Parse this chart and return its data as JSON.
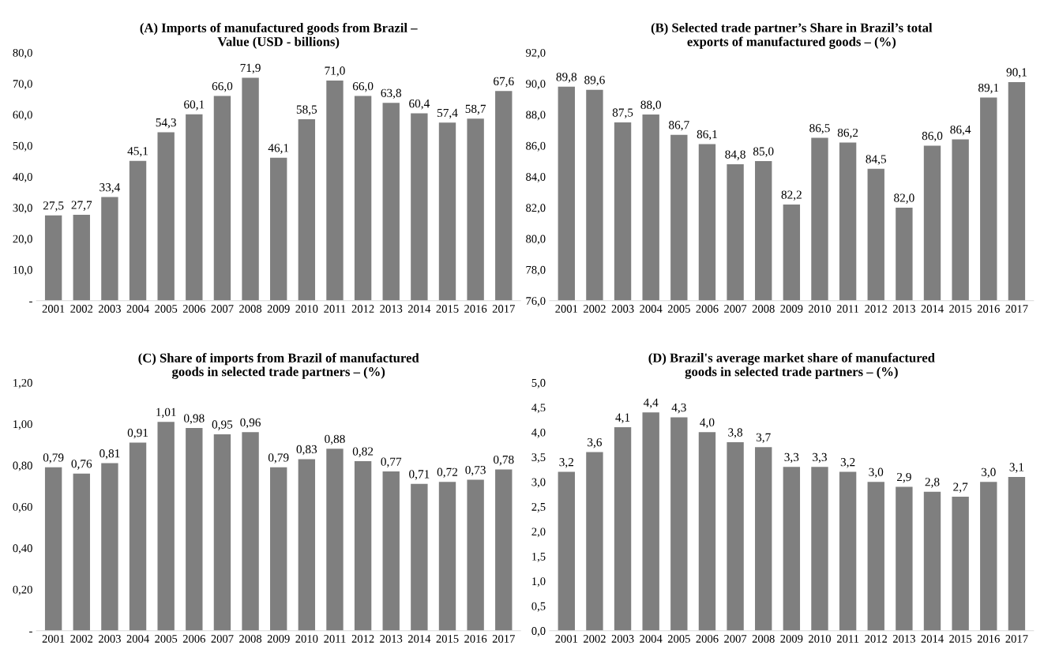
{
  "chart_data": [
    {
      "type": "bar",
      "title": "(A) Imports of manufactured goods from Brazil –\nValue (USD - billions)",
      "categories": [
        "2001",
        "2002",
        "2003",
        "2004",
        "2005",
        "2006",
        "2007",
        "2008",
        "2009",
        "2010",
        "2011",
        "2012",
        "2013",
        "2014",
        "2015",
        "2016",
        "2017"
      ],
      "color": "#7f7f7f",
      "values": [
        27.5,
        27.7,
        33.4,
        45.1,
        54.3,
        60.1,
        66.0,
        71.9,
        46.1,
        58.5,
        71.0,
        66.0,
        63.8,
        60.4,
        57.4,
        58.7,
        67.6
      ],
      "value_labels": [
        "27,5",
        "27,7",
        "33,4",
        "45,1",
        "54,3",
        "60,1",
        "66,0",
        "71,9",
        "46,1",
        "58,5",
        "71,0",
        "66,0",
        "63,8",
        "60,4",
        "57,4",
        "58,7",
        "67,6"
      ],
      "ylim": [
        0,
        80
      ],
      "yticks": [
        {
          "value": 0,
          "label": "-"
        },
        {
          "value": 10,
          "label": "10,0"
        },
        {
          "value": 20,
          "label": "20,0"
        },
        {
          "value": 30,
          "label": "30,0"
        },
        {
          "value": 40,
          "label": "40,0"
        },
        {
          "value": 50,
          "label": "50,0"
        },
        {
          "value": 60,
          "label": "60,0"
        },
        {
          "value": 70,
          "label": "70,0"
        },
        {
          "value": 80,
          "label": "80,0"
        }
      ]
    },
    {
      "type": "bar",
      "title": "(B) Selected trade partner’s Share in Brazil’s total\nexports of manufactured goods – (%)",
      "categories": [
        "2001",
        "2002",
        "2003",
        "2004",
        "2005",
        "2006",
        "2007",
        "2008",
        "2009",
        "2010",
        "2011",
        "2012",
        "2013",
        "2014",
        "2015",
        "2016",
        "2017"
      ],
      "color": "#7f7f7f",
      "values": [
        89.8,
        89.6,
        87.5,
        88.0,
        86.7,
        86.1,
        84.8,
        85.0,
        82.2,
        86.5,
        86.2,
        84.5,
        82.0,
        86.0,
        86.4,
        89.1,
        90.1
      ],
      "value_labels": [
        "89,8",
        "89,6",
        "87,5",
        "88,0",
        "86,7",
        "86,1",
        "84,8",
        "85,0",
        "82,2",
        "86,5",
        "86,2",
        "84,5",
        "82,0",
        "86,0",
        "86,4",
        "89,1",
        "90,1"
      ],
      "ylim": [
        76,
        92
      ],
      "yticks": [
        {
          "value": 76,
          "label": "76,0"
        },
        {
          "value": 78,
          "label": "78,0"
        },
        {
          "value": 80,
          "label": "80,0"
        },
        {
          "value": 82,
          "label": "82,0"
        },
        {
          "value": 84,
          "label": "84,0"
        },
        {
          "value": 86,
          "label": "86,0"
        },
        {
          "value": 88,
          "label": "88,0"
        },
        {
          "value": 90,
          "label": "90,0"
        },
        {
          "value": 92,
          "label": "92,0"
        }
      ]
    },
    {
      "type": "bar",
      "title": "(C) Share of imports from Brazil of manufactured\ngoods in selected trade partners – (%)",
      "categories": [
        "2001",
        "2002",
        "2003",
        "2004",
        "2005",
        "2006",
        "2007",
        "2008",
        "2009",
        "2010",
        "2011",
        "2012",
        "2013",
        "2014",
        "2015",
        "2016",
        "2017"
      ],
      "color": "#7f7f7f",
      "values": [
        0.79,
        0.76,
        0.81,
        0.91,
        1.01,
        0.98,
        0.95,
        0.96,
        0.79,
        0.83,
        0.88,
        0.82,
        0.77,
        0.71,
        0.72,
        0.73,
        0.78
      ],
      "value_labels": [
        "0,79",
        "0,76",
        "0,81",
        "0,91",
        "1,01",
        "0,98",
        "0,95",
        "0,96",
        "0,79",
        "0,83",
        "0,88",
        "0,82",
        "0,77",
        "0,71",
        "0,72",
        "0,73",
        "0,78"
      ],
      "ylim": [
        0,
        1.2
      ],
      "yticks": [
        {
          "value": 0,
          "label": "-"
        },
        {
          "value": 0.2,
          "label": "0,20"
        },
        {
          "value": 0.4,
          "label": "0,40"
        },
        {
          "value": 0.6,
          "label": "0,60"
        },
        {
          "value": 0.8,
          "label": "0,80"
        },
        {
          "value": 1.0,
          "label": "1,00"
        },
        {
          "value": 1.2,
          "label": "1,20"
        }
      ]
    },
    {
      "type": "bar",
      "title": "(D) Brazil's average market share of manufactured\ngoods in selected trade partners – (%)",
      "categories": [
        "2001",
        "2002",
        "2003",
        "2004",
        "2005",
        "2006",
        "2007",
        "2008",
        "2009",
        "2010",
        "2011",
        "2012",
        "2013",
        "2014",
        "2015",
        "2016",
        "2017"
      ],
      "color": "#7f7f7f",
      "values": [
        3.2,
        3.6,
        4.1,
        4.4,
        4.3,
        4.0,
        3.8,
        3.7,
        3.3,
        3.3,
        3.2,
        3.0,
        2.9,
        2.8,
        2.7,
        3.0,
        3.1
      ],
      "value_labels": [
        "3,2",
        "3,6",
        "4,1",
        "4,4",
        "4,3",
        "4,0",
        "3,8",
        "3,7",
        "3,3",
        "3,3",
        "3,2",
        "3,0",
        "2,9",
        "2,8",
        "2,7",
        "3,0",
        "3,1"
      ],
      "ylim": [
        0,
        5
      ],
      "yticks": [
        {
          "value": 0,
          "label": "0,0"
        },
        {
          "value": 0.5,
          "label": "0,5"
        },
        {
          "value": 1,
          "label": "1,0"
        },
        {
          "value": 1.5,
          "label": "1,5"
        },
        {
          "value": 2,
          "label": "2,0"
        },
        {
          "value": 2.5,
          "label": "2,5"
        },
        {
          "value": 3,
          "label": "3,0"
        },
        {
          "value": 3.5,
          "label": "3,5"
        },
        {
          "value": 4,
          "label": "4,0"
        },
        {
          "value": 4.5,
          "label": "4,5"
        },
        {
          "value": 5,
          "label": "5,0"
        }
      ]
    }
  ]
}
